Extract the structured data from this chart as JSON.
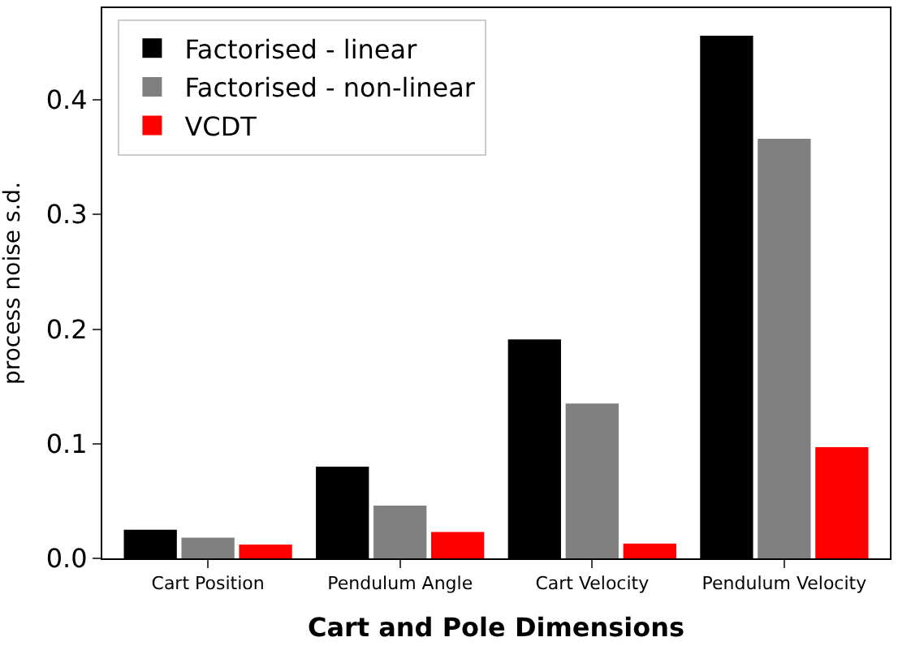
{
  "chart_data": {
    "type": "bar",
    "xlabel": "Cart and Pole Dimensions",
    "ylabel": "process noise s.d.",
    "categories": [
      "Cart Position",
      "Pendulum Angle",
      "Cart Velocity",
      "Pendulum Velocity"
    ],
    "series": [
      {
        "name": "Factorised - linear",
        "color": "#000000",
        "values": [
          0.025,
          0.08,
          0.191,
          0.456
        ]
      },
      {
        "name": "Factorised - non-linear",
        "color": "#808080",
        "values": [
          0.018,
          0.046,
          0.135,
          0.366
        ]
      },
      {
        "name": "VCDT",
        "color": "#ff0000",
        "values": [
          0.012,
          0.023,
          0.013,
          0.097
        ]
      }
    ],
    "ylim": [
      0,
      0.48
    ],
    "yticks": [
      {
        "value": 0,
        "label": "0.0"
      },
      0.1,
      0.2,
      0.3,
      0.4
    ],
    "legend": "top left"
  }
}
